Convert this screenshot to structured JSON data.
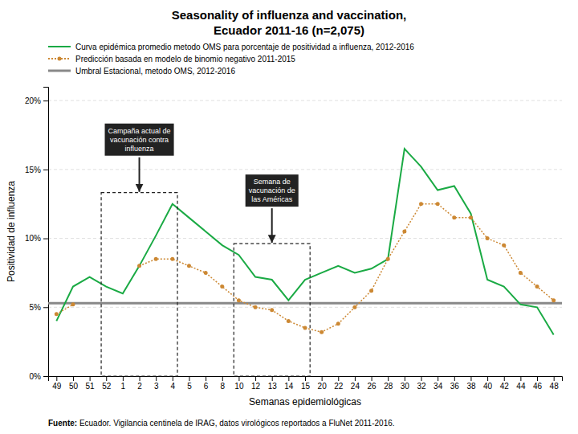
{
  "chart_data": {
    "type": "line",
    "title": [
      "Seasonality of influenza and vaccination,",
      "Ecuador 2011-16 (n=2,075)"
    ],
    "xlabel": "Semanas epidemiológicas",
    "ylabel": "Positividad de influenza",
    "categories": [
      "49",
      "50",
      "51",
      "52",
      "1",
      "2",
      "3",
      "4",
      "5",
      "6",
      "8",
      "10",
      "12",
      "13",
      "14",
      "15",
      "20",
      "22",
      "24",
      "26",
      "28",
      "30",
      "32",
      "34",
      "36",
      "38",
      "40",
      "42",
      "44",
      "46",
      "48"
    ],
    "series": [
      {
        "name": "Curva epidémica promedio metodo OMS para porcentaje de positividad a influenza, 2012-2016",
        "color": "#1aaa44",
        "line_style": "solid",
        "values": [
          4.0,
          6.5,
          7.2,
          6.5,
          6.0,
          8.0,
          10.2,
          12.5,
          11.5,
          10.5,
          9.5,
          8.8,
          7.2,
          7.0,
          5.5,
          7.0,
          7.5,
          8.0,
          7.5,
          7.8,
          8.5,
          16.5,
          15.2,
          13.5,
          13.8,
          11.8,
          7.0,
          6.5,
          5.2,
          5.0,
          3.0
        ]
      },
      {
        "name": "Predicción basada en modelo de binomio negativo 2011-2015",
        "color": "#cc8833",
        "line_style": "dotted",
        "marker": "circle",
        "values": [
          4.5,
          5.2,
          null,
          null,
          null,
          8.0,
          8.5,
          8.5,
          8.0,
          7.5,
          6.5,
          5.5,
          5.0,
          4.8,
          4.0,
          3.5,
          3.2,
          3.8,
          5.0,
          6.2,
          8.5,
          10.5,
          12.5,
          12.5,
          11.5,
          11.5,
          10.0,
          9.5,
          7.5,
          6.5,
          5.5
        ]
      }
    ],
    "threshold": {
      "name": "Umbral Estacional, metodo OMS, 2012-2016",
      "value": 5.3,
      "color": "#888888"
    },
    "ylim": [
      0,
      21
    ],
    "yticks": [
      {
        "value": 0,
        "label": "0%"
      },
      {
        "value": 5,
        "label": "5%"
      },
      {
        "value": 10,
        "label": "10%"
      },
      {
        "value": 15,
        "label": "15%"
      },
      {
        "value": 20,
        "label": "20%"
      }
    ],
    "grid": true,
    "annotations": [
      {
        "text": "Campaña actual de\nvacunación contra\ninfluenza",
        "from": "52",
        "to": "4"
      },
      {
        "text": "Semana de\nvacunación de\nlas Américas",
        "from": "10",
        "to": "15"
      }
    ],
    "source_label": "Fuente:",
    "source": " Ecuador. Vigilancia centinela de IRAG, datos virológicos reportados a FluNet 2011-2016."
  }
}
